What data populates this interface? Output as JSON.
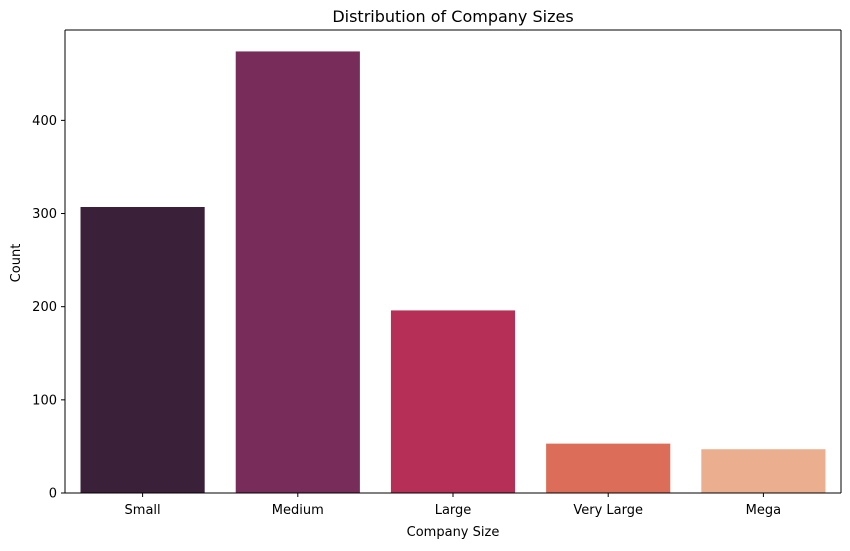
{
  "chart_data": {
    "type": "bar",
    "title": "Distribution of Company Sizes",
    "xlabel": "Company Size",
    "ylabel": "Count",
    "categories": [
      "Small",
      "Medium",
      "Large",
      "Very Large",
      "Mega"
    ],
    "values": [
      307,
      474,
      196,
      53,
      47
    ],
    "colors": [
      "#3b2039",
      "#772c59",
      "#b52f56",
      "#dc6d58",
      "#ebae8f"
    ],
    "ylim": [
      0,
      497
    ],
    "yticks": [
      0,
      100,
      200,
      300,
      400
    ],
    "grid": false,
    "legend": "none"
  }
}
